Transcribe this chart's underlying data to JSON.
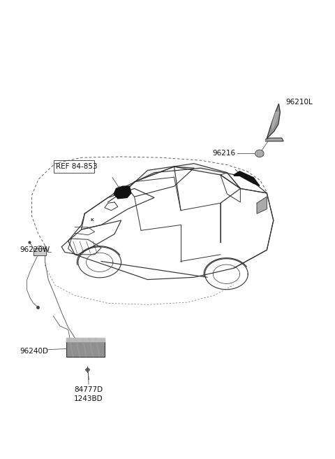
{
  "bg_color": "#ffffff",
  "fig_width": 4.8,
  "fig_height": 6.56,
  "dpi": 100,
  "label_96210L": "96210L",
  "label_96216": "96216",
  "label_ref": "REF 84-853",
  "label_96220W": "96220W",
  "label_96240D": "96240D",
  "label_84777D": "84777D",
  "label_1243BD": "1243BD",
  "car_color": "#333333",
  "wire_color": "#555555",
  "module_color": "#777777",
  "fin_color": "#888888"
}
